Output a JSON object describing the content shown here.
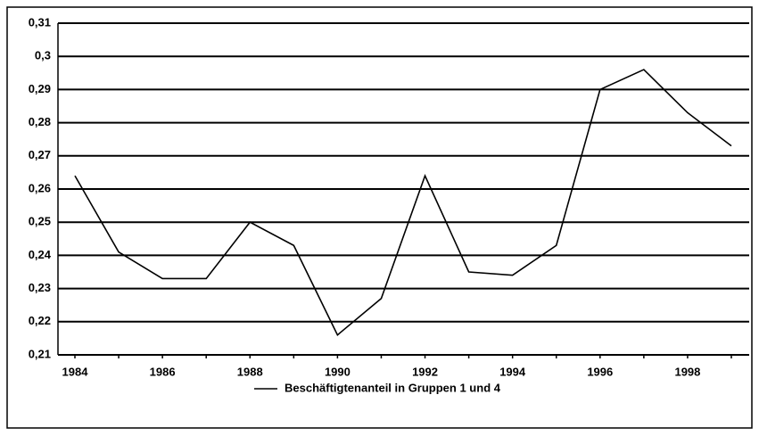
{
  "chart_data": {
    "type": "line",
    "categories": [
      "1984",
      null,
      "1986",
      null,
      "1988",
      null,
      "1990",
      null,
      "1992",
      null,
      "1994",
      null,
      "1996",
      null,
      "1998",
      null
    ],
    "series": [
      {
        "name": "Beschäftigtenanteil in Gruppen 1 und 4",
        "color": "#000000",
        "values": [
          0.264,
          0.241,
          0.233,
          0.233,
          0.25,
          0.243,
          0.216,
          0.227,
          0.264,
          0.235,
          0.234,
          0.243,
          0.29,
          0.296,
          0.283,
          0.273
        ]
      }
    ],
    "ylim": [
      0.21,
      0.31
    ],
    "yticks": [
      {
        "value": 0.21,
        "label": "0,21"
      },
      {
        "value": 0.22,
        "label": "0,22"
      },
      {
        "value": 0.23,
        "label": "0,23"
      },
      {
        "value": 0.24,
        "label": "0,24"
      },
      {
        "value": 0.25,
        "label": "0,25"
      },
      {
        "value": 0.26,
        "label": "0,26"
      },
      {
        "value": 0.27,
        "label": "0,27"
      },
      {
        "value": 0.28,
        "label": "0,28"
      },
      {
        "value": 0.29,
        "label": "0,29"
      },
      {
        "value": 0.3,
        "label": "0,3"
      },
      {
        "value": 0.31,
        "label": "0,31"
      }
    ],
    "grid": true,
    "legend": "bottom"
  }
}
